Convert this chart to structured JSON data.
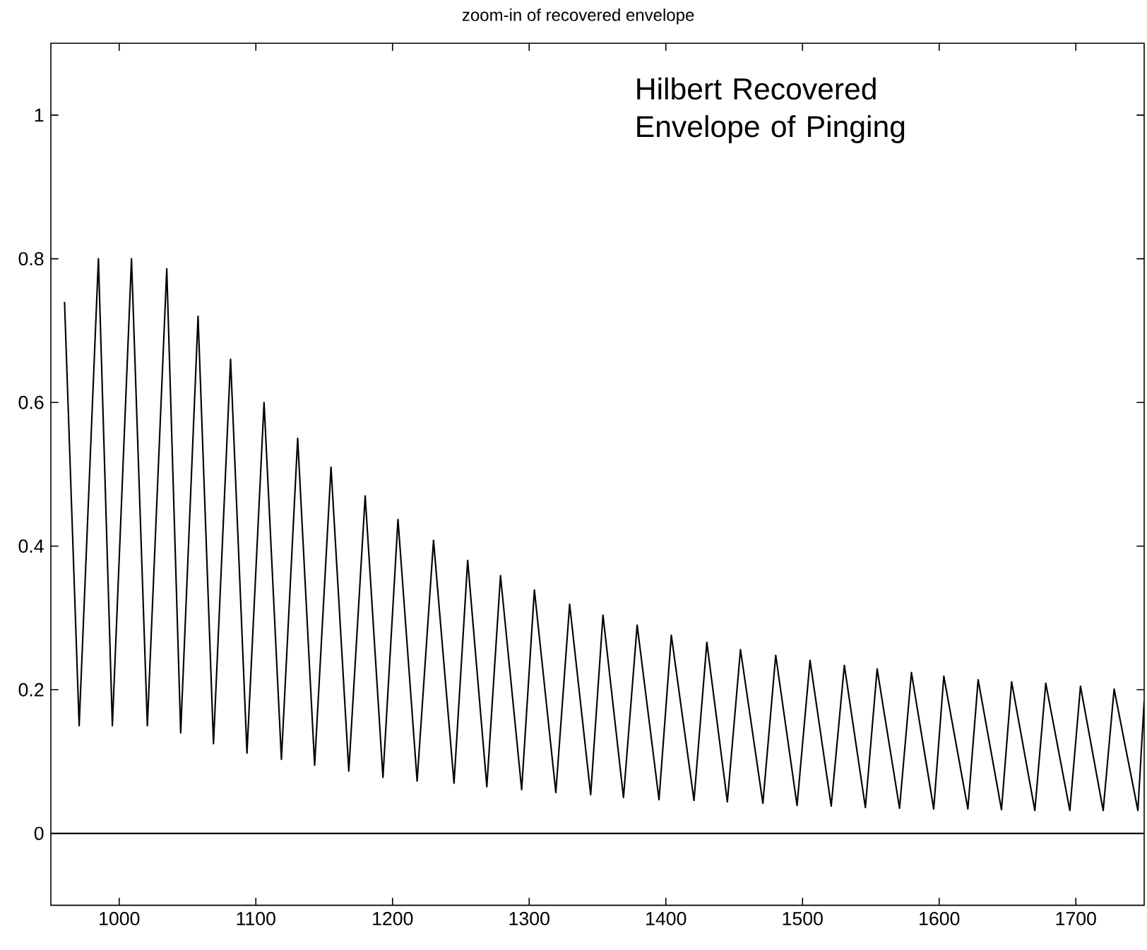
{
  "chart_data": {
    "type": "line",
    "title": "zoom-in of recovered envelope",
    "annotations": [
      "Hilbert Recovered Envelope of Pinging"
    ],
    "xlim": [
      950,
      1750
    ],
    "ylim": [
      -0.1,
      1.1
    ],
    "xticks": [
      1000,
      1100,
      1200,
      1300,
      1400,
      1500,
      1600,
      1700
    ],
    "yticks": [
      0,
      0.2,
      0.4,
      0.6,
      0.8,
      1
    ],
    "ref_lines": [
      {
        "axis": "y",
        "value": 0,
        "color": "#000000"
      }
    ],
    "marker": "none",
    "line_style": "solid",
    "series": [
      {
        "color": "#000000",
        "x": [
          960,
          970.7,
          984.8,
          995,
          1009,
          1020.6,
          1034.8,
          1045,
          1057.7,
          1069,
          1081.5,
          1093.5,
          1106,
          1118.7,
          1130.6,
          1143,
          1155,
          1168,
          1180,
          1193,
          1204,
          1218,
          1230,
          1245,
          1255,
          1269,
          1279,
          1294.5,
          1303.8,
          1319.5,
          1329.6,
          1345,
          1354,
          1369,
          1379,
          1395,
          1404,
          1420.6,
          1430,
          1445,
          1454.6,
          1471,
          1480.4,
          1496,
          1505.5,
          1521,
          1530.6,
          1546,
          1554.6,
          1571,
          1579.7,
          1596,
          1603.4,
          1621,
          1628.5,
          1645.6,
          1653,
          1670,
          1678,
          1695.6,
          1703.4,
          1720,
          1728,
          1745.4,
          1750
        ],
        "values": [
          0.74,
          0.15,
          0.8,
          0.15,
          0.8,
          0.15,
          0.786,
          0.14,
          0.72,
          0.125,
          0.66,
          0.112,
          0.6,
          0.103,
          0.55,
          0.095,
          0.51,
          0.087,
          0.47,
          0.078,
          0.437,
          0.073,
          0.408,
          0.07,
          0.38,
          0.065,
          0.359,
          0.061,
          0.339,
          0.057,
          0.319,
          0.054,
          0.304,
          0.05,
          0.29,
          0.047,
          0.276,
          0.046,
          0.266,
          0.044,
          0.256,
          0.042,
          0.248,
          0.039,
          0.241,
          0.038,
          0.234,
          0.036,
          0.229,
          0.035,
          0.224,
          0.034,
          0.219,
          0.034,
          0.214,
          0.033,
          0.211,
          0.032,
          0.209,
          0.032,
          0.205,
          0.032,
          0.201,
          0.032,
          0.184
        ]
      }
    ]
  }
}
